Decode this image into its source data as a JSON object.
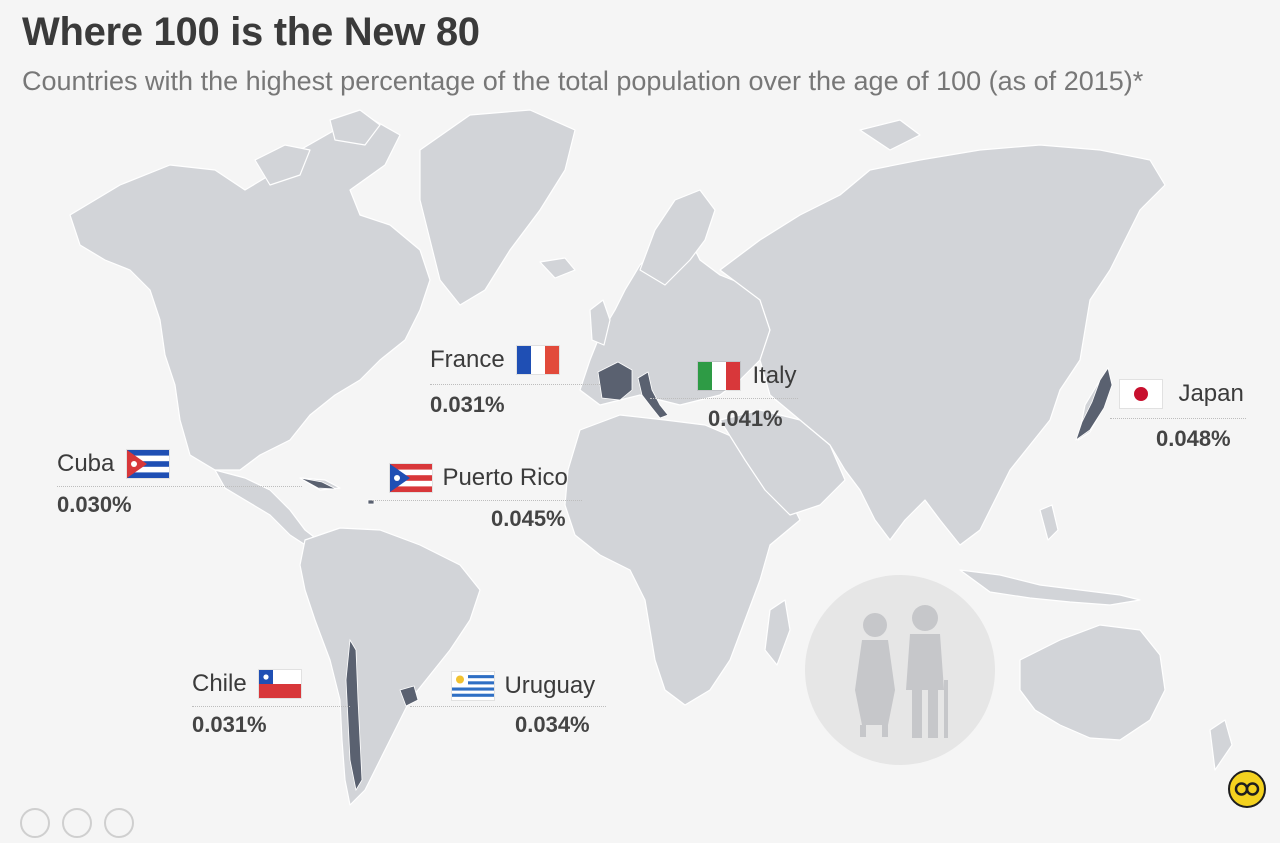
{
  "title": "Where 100 is the New 80",
  "subtitle": "Countries with the highest percentage of the total population over the age of 100 (as of 2015)*",
  "colors": {
    "background": "#f5f5f5",
    "land": "#d2d4d8",
    "highlight": "#5a6170",
    "icon_circle": "#e6e6e6",
    "icon_figure": "#c6c7ca"
  },
  "countries": [
    {
      "id": "france",
      "name": "France",
      "value": "0.031%",
      "flag": "france-flag-icon"
    },
    {
      "id": "italy",
      "name": "Italy",
      "value": "0.041%",
      "flag": "italy-flag-icon"
    },
    {
      "id": "japan",
      "name": "Japan",
      "value": "0.048%",
      "flag": "japan-flag-icon"
    },
    {
      "id": "cuba",
      "name": "Cuba",
      "value": "0.030%",
      "flag": "cuba-flag-icon"
    },
    {
      "id": "puerto_rico",
      "name": "Puerto Rico",
      "value": "0.045%",
      "flag": "puerto-rico-flag-icon"
    },
    {
      "id": "chile",
      "name": "Chile",
      "value": "0.031%",
      "flag": "chile-flag-icon"
    },
    {
      "id": "uruguay",
      "name": "Uruguay",
      "value": "0.034%",
      "flag": "uruguay-flag-icon"
    }
  ],
  "icons": {
    "elderly": "elderly-couple-icon",
    "logo": "statista-logo-icon"
  }
}
